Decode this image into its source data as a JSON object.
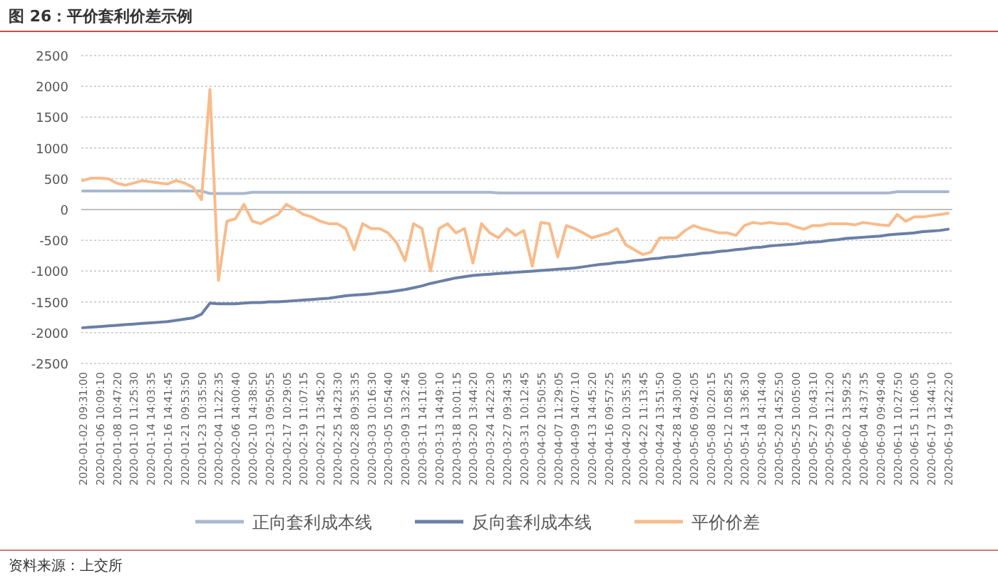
{
  "chart_data": {
    "type": "line",
    "title": "图 26：平价套利价差示例",
    "categories": [
      "2020-01-02 09:31:00",
      null,
      "2020-01-06 10:09:10",
      null,
      "2020-01-08 10:47:20",
      null,
      "2020-01-10 11:25:30",
      null,
      "2020-01-14 14:03:35",
      null,
      "2020-01-16 14:41:45",
      null,
      "2020-01-21 09:53:50",
      null,
      "2020-01-23 10:35:50",
      null,
      "2020-02-04 11:22:35",
      null,
      "2020-02-06 14:00:40",
      null,
      "2020-02-10 14:38:50",
      null,
      "2020-02-13 09:50:55",
      null,
      "2020-02-17 10:29:05",
      null,
      "2020-02-19 11:07:15",
      null,
      "2020-02-21 13:45:20",
      null,
      "2020-02-25 14:23:30",
      null,
      "2020-02-28 09:35:35",
      null,
      "2020-03-03 10:16:30",
      null,
      "2020-03-05 10:54:40",
      null,
      "2020-03-09 13:32:45",
      null,
      "2020-03-11 14:11:00",
      null,
      "2020-03-13 14:49:10",
      null,
      "2020-03-18 10:01:15",
      null,
      "2020-03-20 13:44:20",
      null,
      "2020-03-24 14:22:30",
      null,
      "2020-03-27 09:34:35",
      null,
      "2020-03-31 10:12:45",
      null,
      "2020-04-02 10:50:55",
      null,
      "2020-04-07 11:29:05",
      null,
      "2020-04-09 14:07:10",
      null,
      "2020-04-13 14:45:20",
      null,
      "2020-04-16 09:57:25",
      null,
      "2020-04-20 10:35:35",
      null,
      "2020-04-22 11:13:45",
      null,
      "2020-04-24 13:51:50",
      null,
      "2020-04-28 14:30:00",
      null,
      "2020-05-06 09:42:05",
      null,
      "2020-05-08 10:20:15",
      null,
      "2020-05-12 10:58:25",
      null,
      "2020-05-14 13:36:30",
      null,
      "2020-05-18 14:14:40",
      null,
      "2020-05-20 14:52:50",
      null,
      "2020-05-25 10:05:00",
      null,
      "2020-05-27 10:43:10",
      null,
      "2020-05-29 11:21:20",
      null,
      "2020-06-02 13:59:25",
      null,
      "2020-06-04 14:37:35",
      null,
      "2020-06-09 09:49:40",
      null,
      "2020-06-11 10:27:50",
      null,
      "2020-06-15 11:06:05",
      null,
      "2020-06-17 13:44:10",
      null,
      "2020-06-19 14:22:20"
    ],
    "series": [
      {
        "name": "正向套利成本线",
        "color": "#a9b8d0",
        "values": [
          300,
          300,
          300,
          300,
          300,
          300,
          300,
          300,
          300,
          300,
          300,
          300,
          300,
          300,
          300,
          260,
          260,
          260,
          260,
          260,
          280,
          280,
          280,
          280,
          280,
          280,
          280,
          280,
          280,
          280,
          280,
          280,
          280,
          280,
          280,
          280,
          280,
          280,
          280,
          280,
          280,
          280,
          280,
          280,
          280,
          280,
          280,
          280,
          280,
          270,
          270,
          270,
          270,
          270,
          270,
          270,
          270,
          270,
          270,
          270,
          270,
          270,
          270,
          270,
          270,
          270,
          270,
          270,
          270,
          270,
          270,
          270,
          270,
          270,
          270,
          270,
          270,
          270,
          270,
          270,
          270,
          270,
          270,
          270,
          270,
          270,
          270,
          270,
          270,
          270,
          270,
          270,
          270,
          270,
          270,
          270,
          290,
          290,
          290,
          290,
          290,
          290,
          290
        ]
      },
      {
        "name": "反向套利成本线",
        "color": "#6b7fa6",
        "values": [
          -1920,
          -1910,
          -1900,
          -1890,
          -1880,
          -1870,
          -1860,
          -1850,
          -1840,
          -1830,
          -1820,
          -1800,
          -1780,
          -1760,
          -1700,
          -1520,
          -1530,
          -1530,
          -1530,
          -1520,
          -1510,
          -1510,
          -1500,
          -1500,
          -1490,
          -1480,
          -1470,
          -1460,
          -1450,
          -1440,
          -1420,
          -1400,
          -1390,
          -1380,
          -1370,
          -1350,
          -1340,
          -1320,
          -1300,
          -1270,
          -1240,
          -1200,
          -1170,
          -1140,
          -1110,
          -1090,
          -1070,
          -1060,
          -1050,
          -1040,
          -1030,
          -1020,
          -1010,
          -1000,
          -990,
          -980,
          -970,
          -960,
          -950,
          -930,
          -910,
          -890,
          -880,
          -860,
          -850,
          -830,
          -820,
          -800,
          -790,
          -770,
          -760,
          -740,
          -730,
          -710,
          -700,
          -680,
          -670,
          -650,
          -640,
          -620,
          -610,
          -590,
          -580,
          -570,
          -560,
          -540,
          -530,
          -520,
          -500,
          -490,
          -470,
          -460,
          -450,
          -440,
          -430,
          -410,
          -400,
          -390,
          -380,
          -360,
          -350,
          -340,
          -320
        ]
      },
      {
        "name": "平价价差",
        "color": "#f8bb8a",
        "values": [
          470,
          510,
          510,
          500,
          430,
          395,
          430,
          470,
          450,
          430,
          415,
          470,
          430,
          360,
          160,
          1950,
          -1150,
          -190,
          -150,
          85,
          -190,
          -230,
          -150,
          -80,
          85,
          10,
          -80,
          -120,
          -190,
          -230,
          -230,
          -310,
          -650,
          -230,
          -310,
          -310,
          -380,
          -540,
          -830,
          -230,
          -310,
          -1000,
          -310,
          -230,
          -380,
          -310,
          -870,
          -230,
          -380,
          -460,
          -310,
          -420,
          -340,
          -920,
          -210,
          -230,
          -770,
          -260,
          -310,
          -380,
          -460,
          -420,
          -380,
          -310,
          -570,
          -650,
          -730,
          -690,
          -460,
          -460,
          -460,
          -340,
          -260,
          -310,
          -340,
          -380,
          -380,
          -420,
          -260,
          -210,
          -230,
          -210,
          -230,
          -230,
          -280,
          -320,
          -260,
          -260,
          -230,
          -230,
          -230,
          -250,
          -210,
          -230,
          -250,
          -260,
          -80,
          -190,
          -120,
          -120,
          -100,
          -80,
          -60
        ]
      }
    ],
    "ylim": [
      -2500,
      2500
    ],
    "yticks": [
      -2500,
      -2000,
      -1500,
      -1000,
      -500,
      0,
      500,
      1000,
      1500,
      2000,
      2500
    ],
    "grid": "y",
    "legend": "bottom",
    "line_style": "solid",
    "annotations": [
      "资料来源：上交所"
    ]
  }
}
